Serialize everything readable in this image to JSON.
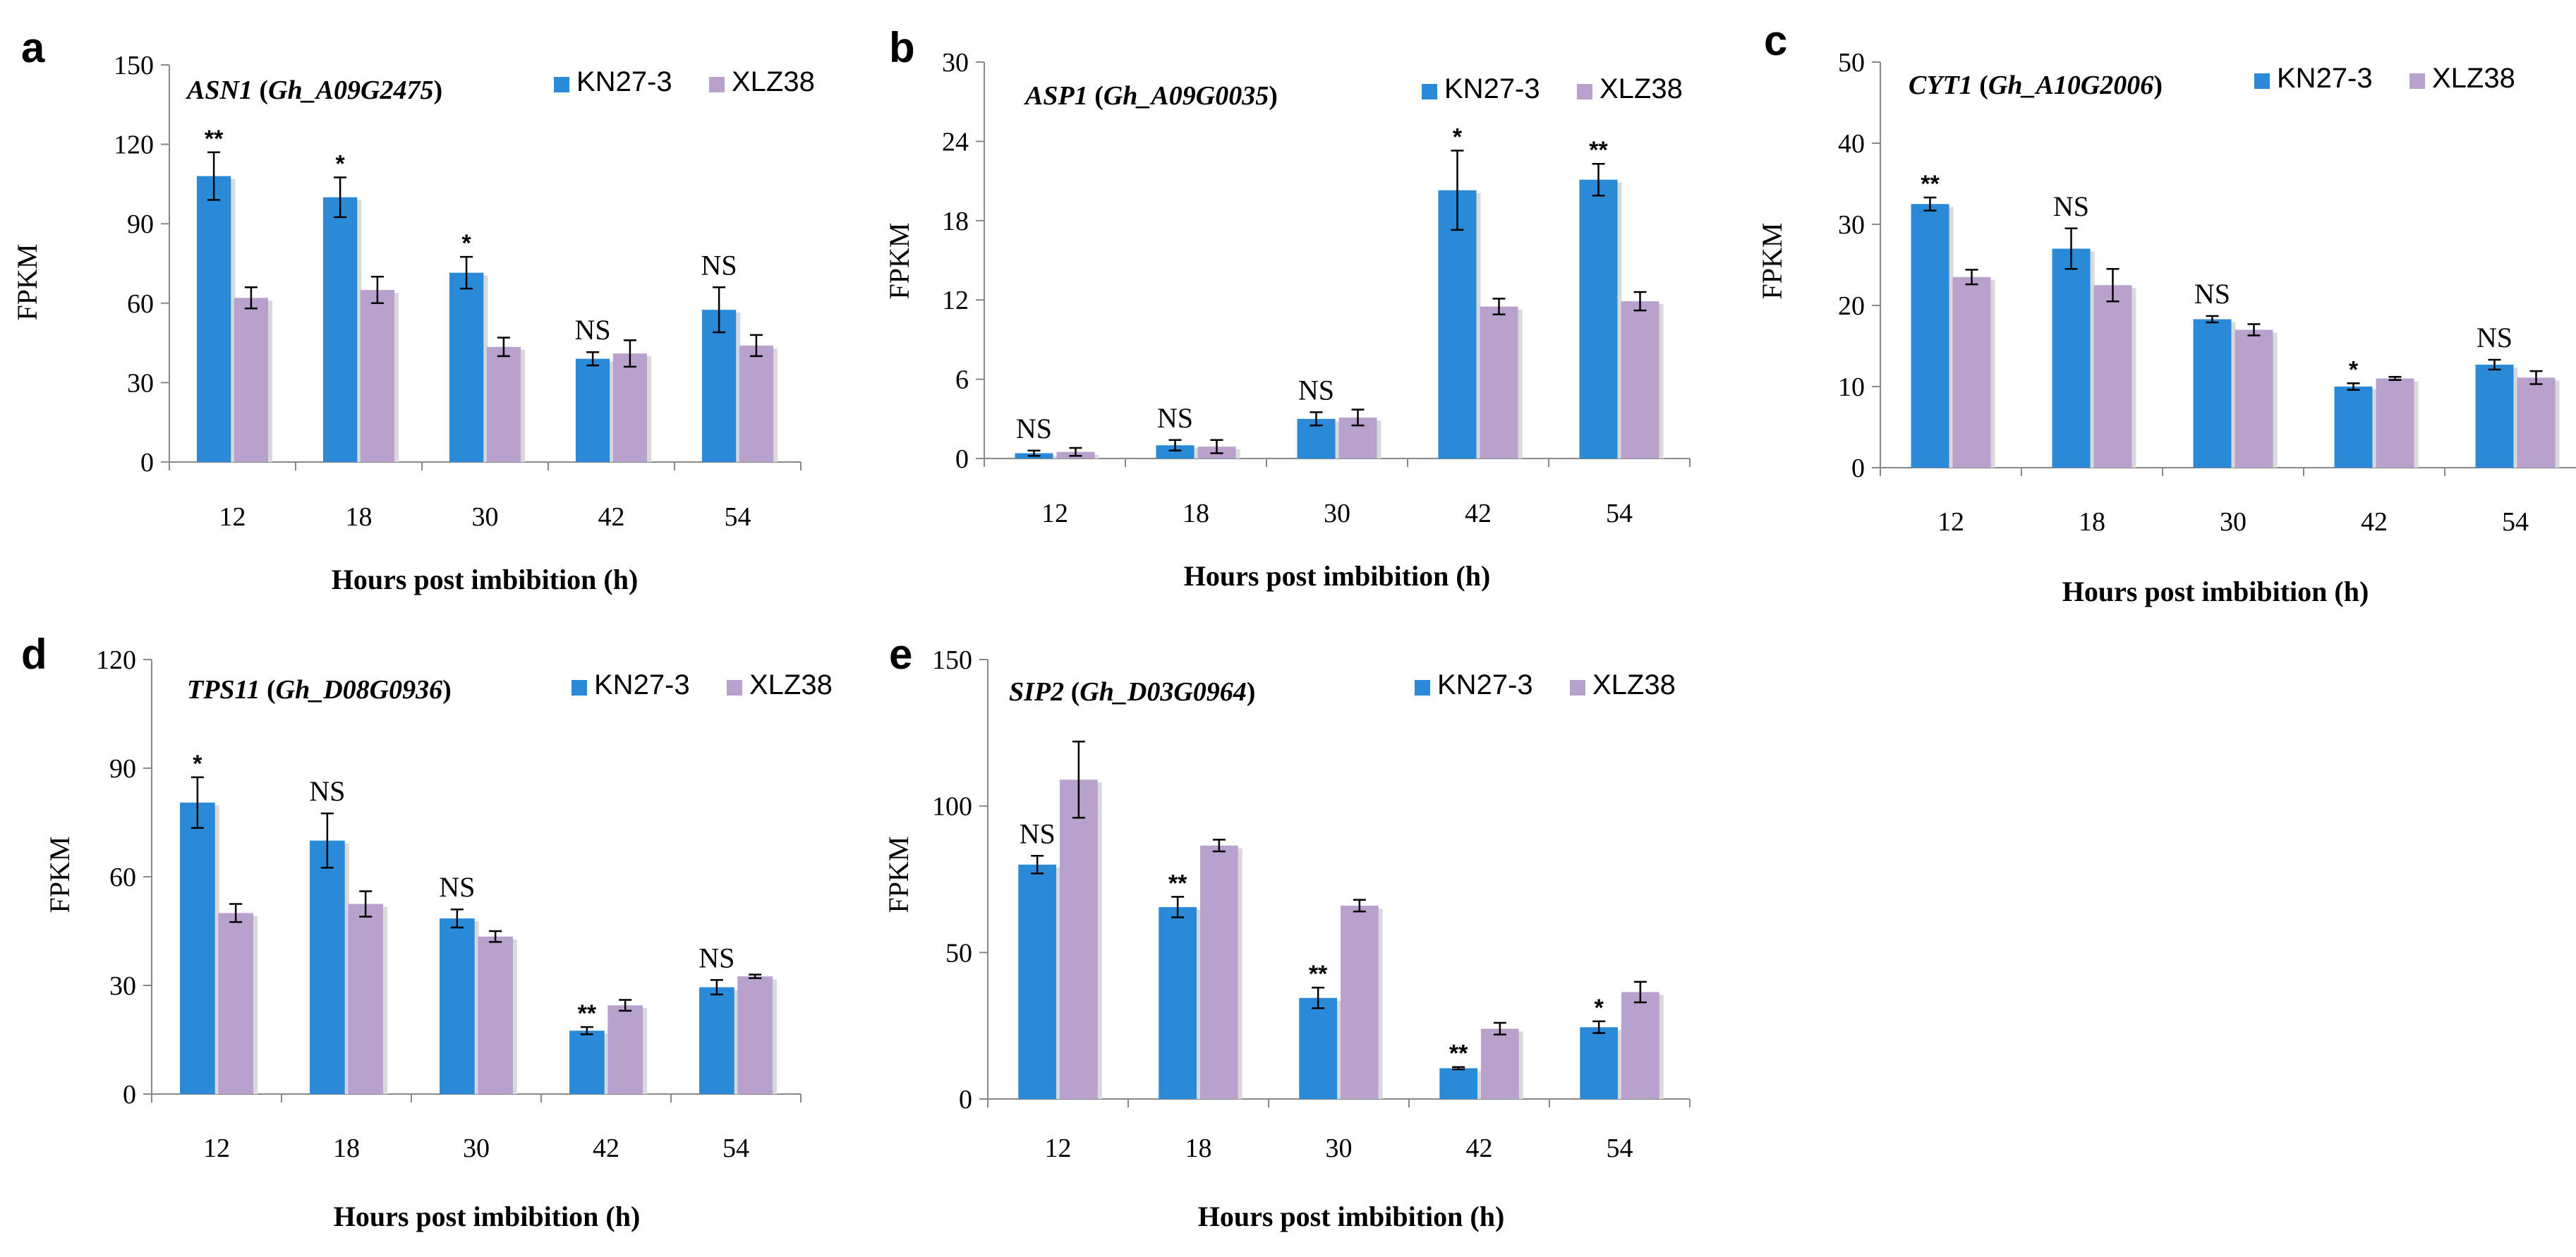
{
  "colors": {
    "kn": "#2a8ad8",
    "xlz": "#b9a1cd",
    "axis": "#888888",
    "text": "#000000"
  },
  "series_names": [
    "KN27-3",
    "XLZ38"
  ],
  "chart_data": [
    {
      "panel": "a",
      "type": "bar",
      "title_gene": "ASN1",
      "title_id": "Gh_A09G2475",
      "categories": [
        "12",
        "18",
        "30",
        "42",
        "54"
      ],
      "xlabel": "Hours post imbibition (h)",
      "ylabel": "FPKM",
      "ylim": [
        0,
        150
      ],
      "yticks": [
        "0",
        "30",
        "60",
        "90",
        "120",
        "150"
      ],
      "series": [
        {
          "name": "KN27-3",
          "values": [
            108,
            100,
            71.5,
            39,
            57.5
          ],
          "errors": [
            9,
            7.5,
            6,
            2.5,
            8.5
          ]
        },
        {
          "name": "XLZ38",
          "values": [
            62,
            65,
            43.5,
            41,
            44
          ],
          "errors": [
            4,
            5,
            3.5,
            5,
            4
          ]
        }
      ],
      "significance": [
        "**",
        "*",
        "*",
        "NS",
        "NS"
      ]
    },
    {
      "panel": "b",
      "type": "bar",
      "title_gene": "ASP1",
      "title_id": "Gh_A09G0035",
      "categories": [
        "12",
        "18",
        "30",
        "42",
        "54"
      ],
      "xlabel": "Hours post imbibition (h)",
      "ylabel": "FPKM",
      "ylim": [
        0,
        30
      ],
      "yticks": [
        "0",
        "6",
        "12",
        "18",
        "24",
        "30"
      ],
      "series": [
        {
          "name": "KN27-3",
          "values": [
            0.4,
            1.0,
            3.0,
            20.3,
            21.1
          ],
          "errors": [
            0.2,
            0.4,
            0.5,
            3.0,
            1.2
          ]
        },
        {
          "name": "XLZ38",
          "values": [
            0.5,
            0.9,
            3.1,
            11.5,
            11.9
          ],
          "errors": [
            0.3,
            0.5,
            0.6,
            0.6,
            0.7
          ]
        }
      ],
      "significance": [
        "NS",
        "NS",
        "NS",
        "*",
        "**"
      ]
    },
    {
      "panel": "c",
      "type": "bar",
      "title_gene": "CYT1",
      "title_id": "Gh_A10G2006",
      "categories": [
        "12",
        "18",
        "30",
        "42",
        "54"
      ],
      "xlabel": "Hours post imbibition (h)",
      "ylabel": "FPKM",
      "ylim": [
        0,
        50
      ],
      "yticks": [
        "0",
        "10",
        "20",
        "30",
        "40",
        "50"
      ],
      "series": [
        {
          "name": "KN27-3",
          "values": [
            32.5,
            27,
            18.3,
            10,
            12.7
          ],
          "errors": [
            0.8,
            2.5,
            0.4,
            0.4,
            0.6
          ]
        },
        {
          "name": "XLZ38",
          "values": [
            23.5,
            22.5,
            17,
            11,
            11.1
          ],
          "errors": [
            0.9,
            2,
            0.7,
            0.2,
            0.8
          ]
        }
      ],
      "significance": [
        "**",
        "NS",
        "NS",
        "*",
        "NS"
      ]
    },
    {
      "panel": "d",
      "type": "bar",
      "title_gene": "TPS11",
      "title_id": "Gh_D08G0936",
      "categories": [
        "12",
        "18",
        "30",
        "42",
        "54"
      ],
      "xlabel": "Hours post imbibition (h)",
      "ylabel": "FPKM",
      "ylim": [
        0,
        120
      ],
      "yticks": [
        "0",
        "30",
        "60",
        "90",
        "120"
      ],
      "series": [
        {
          "name": "KN27-3",
          "values": [
            80.5,
            70,
            48.5,
            17.5,
            29.5
          ],
          "errors": [
            7,
            7.5,
            2.5,
            1,
            2
          ]
        },
        {
          "name": "XLZ38",
          "values": [
            50,
            52.5,
            43.5,
            24.5,
            32.5
          ],
          "errors": [
            2.5,
            3.5,
            1.5,
            1.5,
            0.5
          ]
        }
      ],
      "significance": [
        "*",
        "NS",
        "NS",
        "**",
        "NS"
      ]
    },
    {
      "panel": "e",
      "type": "bar",
      "title_gene": "SIP2",
      "title_id": "Gh_D03G0964",
      "categories": [
        "12",
        "18",
        "30",
        "42",
        "54"
      ],
      "xlabel": "Hours post imbibition (h)",
      "ylabel": "FPKM",
      "ylim": [
        0,
        150
      ],
      "yticks": [
        "0",
        "50",
        "100",
        "150"
      ],
      "series": [
        {
          "name": "KN27-3",
          "values": [
            80,
            65.5,
            34.5,
            10.5,
            24.5
          ],
          "errors": [
            3,
            3.5,
            3.5,
            0.4,
            2
          ]
        },
        {
          "name": "XLZ38",
          "values": [
            109,
            86.5,
            66,
            24,
            36.5
          ],
          "errors": [
            13,
            2,
            2,
            2,
            3.5
          ]
        }
      ],
      "significance": [
        "NS",
        "**",
        "**",
        "**",
        "*"
      ]
    }
  ]
}
